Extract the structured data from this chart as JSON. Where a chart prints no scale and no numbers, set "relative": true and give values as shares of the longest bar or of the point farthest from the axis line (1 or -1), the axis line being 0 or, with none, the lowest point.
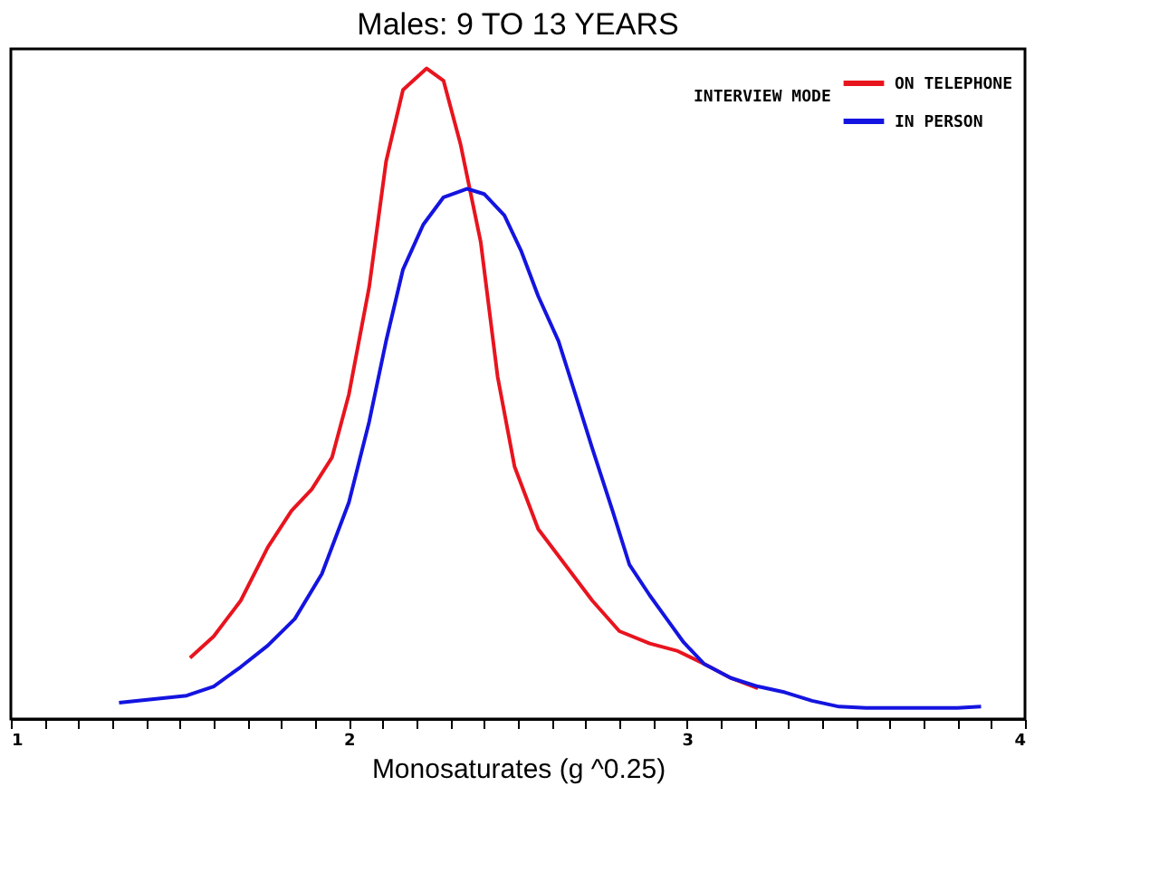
{
  "chart_data": {
    "type": "line",
    "title": "Males: 9 TO 13 YEARS",
    "xlabel": "Monosaturates (g  ^0.25)",
    "legend_title": "INTERVIEW MODE",
    "relative": true,
    "xlim": [
      1,
      4
    ],
    "xticks": [
      1,
      {
        "value": 1.1,
        "label": null
      },
      {
        "value": 1.2,
        "label": null
      },
      {
        "value": 1.3,
        "label": null
      },
      {
        "value": 1.4,
        "label": null
      },
      {
        "value": 1.5,
        "label": null
      },
      {
        "value": 1.6,
        "label": null
      },
      {
        "value": 1.7,
        "label": null
      },
      {
        "value": 1.8,
        "label": null
      },
      {
        "value": 1.9,
        "label": null
      },
      2,
      {
        "value": 2.1,
        "label": null
      },
      {
        "value": 2.2,
        "label": null
      },
      {
        "value": 2.3,
        "label": null
      },
      {
        "value": 2.4,
        "label": null
      },
      {
        "value": 2.5,
        "label": null
      },
      {
        "value": 2.6,
        "label": null
      },
      {
        "value": 2.7,
        "label": null
      },
      {
        "value": 2.8,
        "label": null
      },
      {
        "value": 2.9,
        "label": null
      },
      3,
      {
        "value": 3.1,
        "label": null
      },
      {
        "value": 3.2,
        "label": null
      },
      {
        "value": 3.3,
        "label": null
      },
      {
        "value": 3.4,
        "label": null
      },
      {
        "value": 3.5,
        "label": null
      },
      {
        "value": 3.6,
        "label": null
      },
      {
        "value": 3.7,
        "label": null
      },
      {
        "value": 3.8,
        "label": null
      },
      {
        "value": 3.9,
        "label": null
      },
      4
    ],
    "grid": false,
    "legend": "top right",
    "line_style": "solid",
    "marker": "none",
    "series": [
      {
        "name": "ON TELEPHONE",
        "color": "#e8141e",
        "x": [
          1.53,
          1.6,
          1.68,
          1.76,
          1.83,
          1.89,
          1.95,
          2.0,
          2.06,
          2.11,
          2.16,
          2.23,
          2.28,
          2.33,
          2.39,
          2.44,
          2.49,
          2.56,
          2.64,
          2.72,
          2.8,
          2.89,
          2.97,
          3.05,
          3.13,
          3.21
        ],
        "values": [
          0.094,
          0.127,
          0.182,
          0.264,
          0.32,
          0.353,
          0.402,
          0.499,
          0.664,
          0.857,
          0.967,
          1.0,
          0.981,
          0.884,
          0.733,
          0.526,
          0.388,
          0.292,
          0.237,
          0.182,
          0.135,
          0.116,
          0.105,
          0.085,
          0.063,
          0.047
        ]
      },
      {
        "name": "IN PERSON",
        "color": "#1414e0",
        "x": [
          1.32,
          1.41,
          1.52,
          1.6,
          1.68,
          1.76,
          1.84,
          1.92,
          2.0,
          2.06,
          2.11,
          2.16,
          2.22,
          2.28,
          2.35,
          2.4,
          2.46,
          2.51,
          2.56,
          2.62,
          2.67,
          2.72,
          2.78,
          2.83,
          2.89,
          2.94,
          2.99,
          3.05,
          3.13,
          3.21,
          3.29,
          3.37,
          3.45,
          3.53,
          3.66,
          3.8,
          3.87
        ],
        "values": [
          0.025,
          0.03,
          0.036,
          0.05,
          0.08,
          0.113,
          0.154,
          0.223,
          0.333,
          0.457,
          0.581,
          0.691,
          0.76,
          0.802,
          0.815,
          0.807,
          0.774,
          0.719,
          0.65,
          0.581,
          0.499,
          0.416,
          0.32,
          0.237,
          0.19,
          0.154,
          0.118,
          0.085,
          0.063,
          0.05,
          0.041,
          0.028,
          0.019,
          0.017,
          0.017,
          0.017,
          0.019
        ]
      }
    ]
  }
}
